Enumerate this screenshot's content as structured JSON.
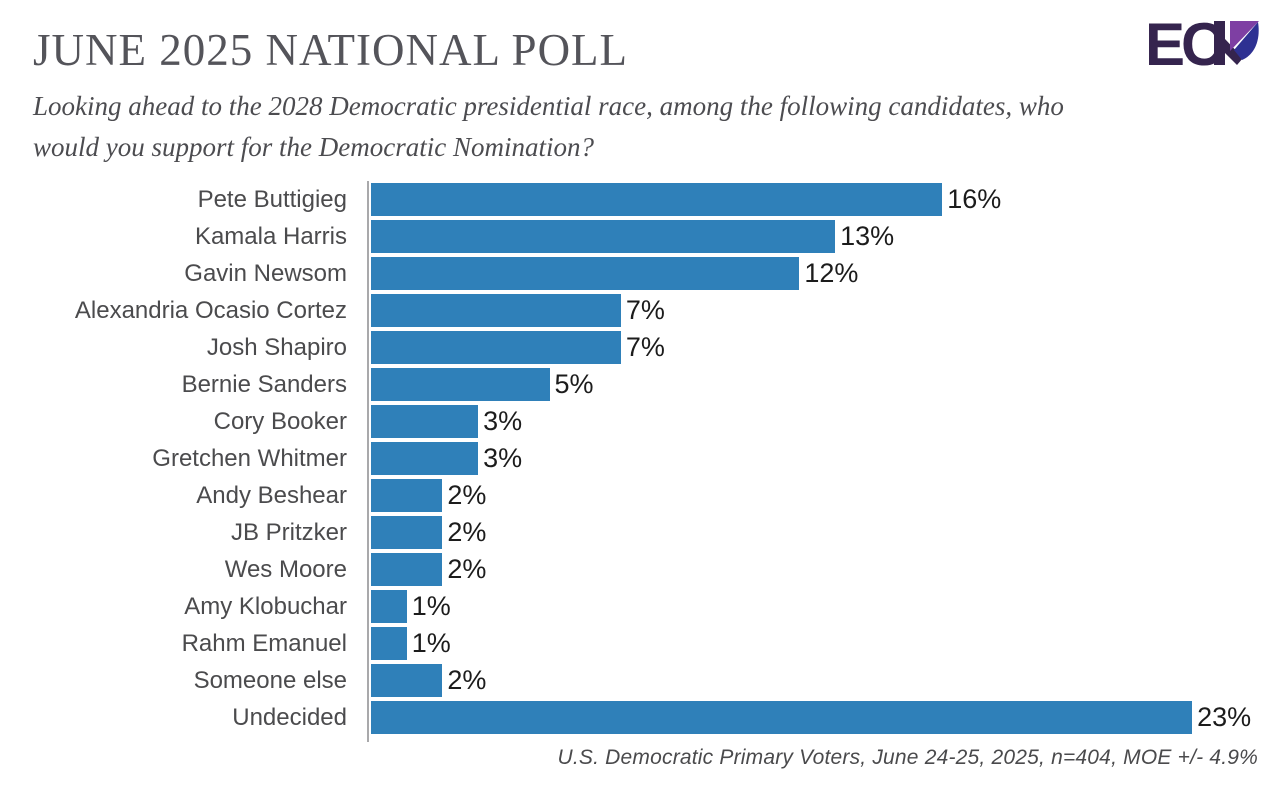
{
  "header": {
    "title": "JUNE 2025 NATIONAL POLL",
    "logo": {
      "text": "EC",
      "name": "ECP logo",
      "colors": {
        "dark_purple": "#35244E",
        "violet": "#7E3FA3",
        "navy": "#2E3192"
      }
    }
  },
  "subtitle": {
    "line1": "Looking ahead to the 2028 Democratic presidential race, among the following candidates, who",
    "line2": "would you support for the Democratic Nomination?"
  },
  "chart_data": {
    "type": "bar",
    "orientation": "horizontal",
    "title": "JUNE 2025 NATIONAL POLL",
    "categories": [
      "Pete Buttigieg",
      "Kamala Harris",
      "Gavin Newsom",
      "Alexandria Ocasio Cortez",
      "Josh Shapiro",
      "Bernie Sanders",
      "Cory Booker",
      "Gretchen Whitmer",
      "Andy Beshear",
      "JB Pritzker",
      "Wes Moore",
      "Amy Klobuchar",
      "Rahm Emanuel",
      "Someone else",
      "Undecided"
    ],
    "values": [
      16,
      13,
      12,
      7,
      7,
      5,
      3,
      3,
      2,
      2,
      2,
      1,
      1,
      2,
      23
    ],
    "value_labels": [
      "16%",
      "13%",
      "12%",
      "7%",
      "7%",
      "5%",
      "3%",
      "3%",
      "2%",
      "2%",
      "2%",
      "1%",
      "1%",
      "2%",
      "23%"
    ],
    "xlabel": "",
    "ylabel": "",
    "xlim": [
      0,
      25
    ],
    "grid": false,
    "legend": false,
    "bar_color": "#2F80B9",
    "axis_color": "#A9A9AB",
    "footnote": "U.S. Democratic Primary Voters, June 24-25, 2025, n=404, MOE +/- 4.9%"
  }
}
